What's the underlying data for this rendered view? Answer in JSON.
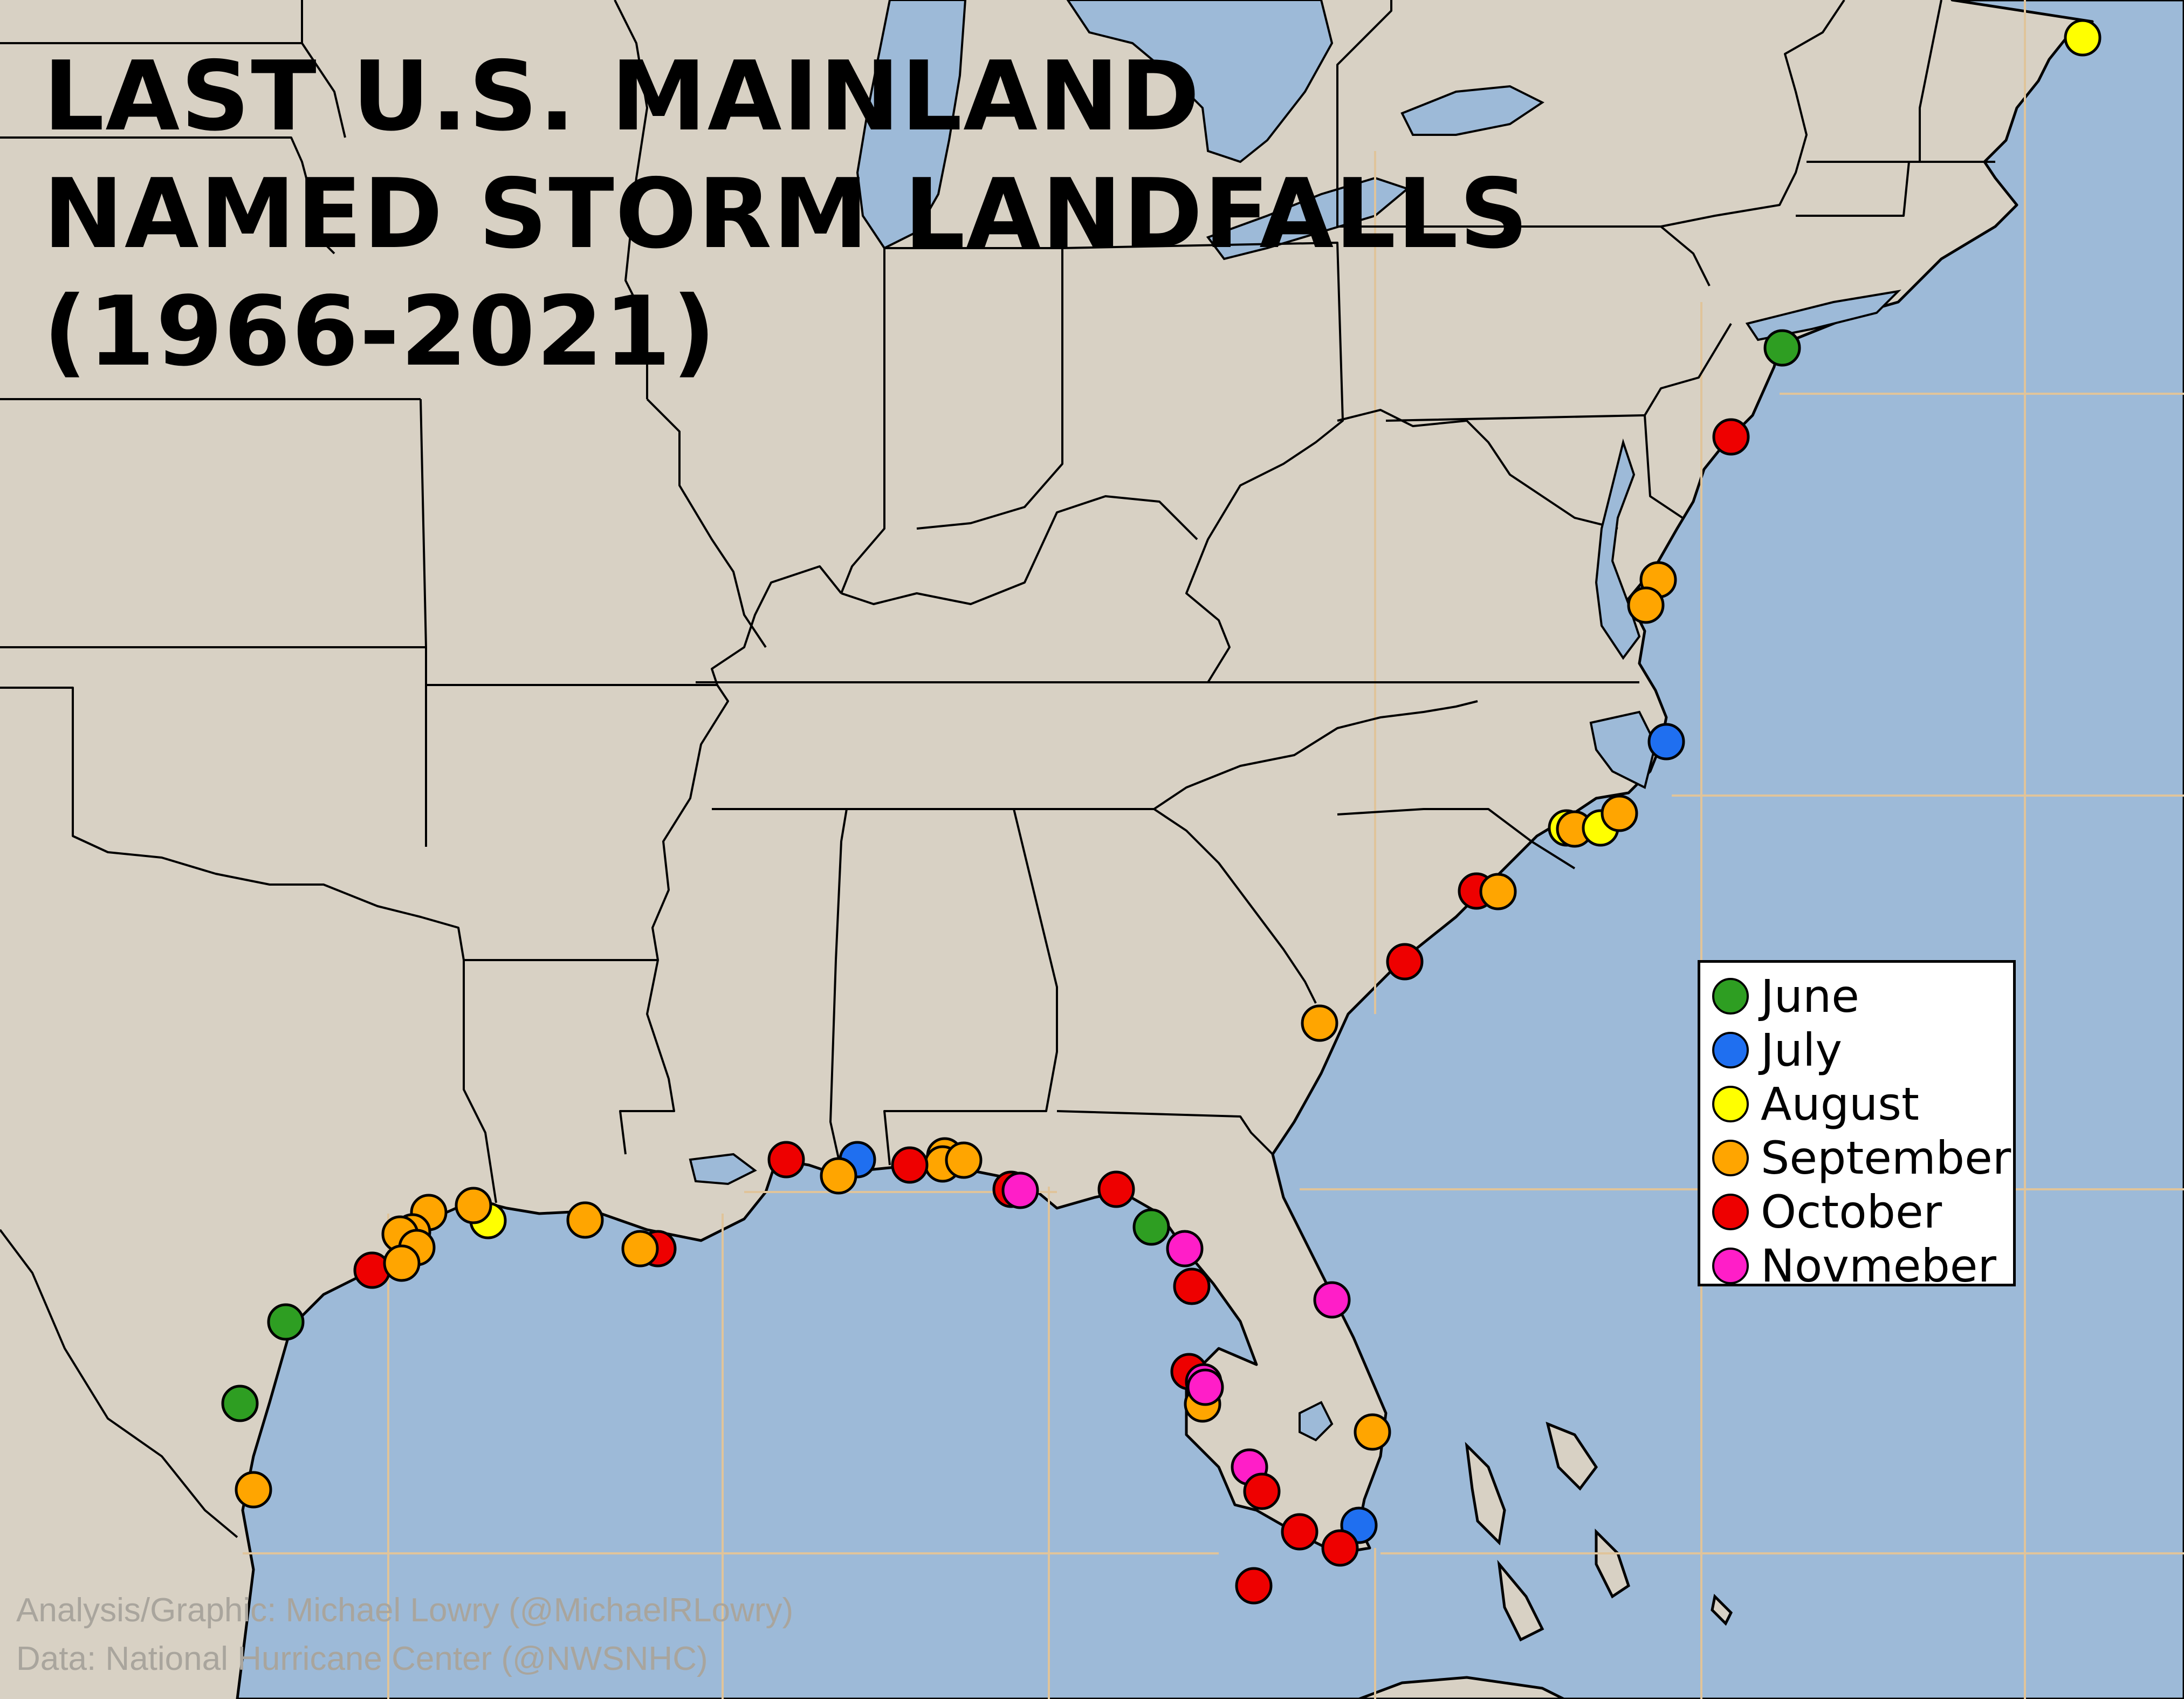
{
  "title": {
    "line1": "LAST U.S. MAINLAND",
    "line2": "NAMED STORM LANDFALLS",
    "line3": "(1966-2021)"
  },
  "colors": {
    "land": "#d8d1c4",
    "water": "#9dbad8",
    "grid": "#e0c49a",
    "border": "#000000"
  },
  "legend": [
    {
      "month": "June",
      "color": "#2e9e22"
    },
    {
      "month": "July",
      "color": "#1f6ff0"
    },
    {
      "month": "August",
      "color": "#ffff00"
    },
    {
      "month": "September",
      "color": "#ffa500"
    },
    {
      "month": "October",
      "color": "#ee0000"
    },
    {
      "month": "Novmeber",
      "color": "#ff1ec8"
    }
  ],
  "credits": {
    "analysis": "Analysis/Graphic: Michael Lowry (@MichaelRLowry)",
    "data": "Data: National Hurricane Center (@NWSNHC)"
  },
  "landfalls": [
    {
      "place": "Maine",
      "month": "August"
    },
    {
      "place": "Long Island NY",
      "month": "June"
    },
    {
      "place": "Southern New Jersey",
      "month": "October"
    },
    {
      "place": "Delmarva coast",
      "month": "September"
    },
    {
      "place": "Delmarva coast",
      "month": "September"
    },
    {
      "place": "Outer Banks NC",
      "month": "July"
    },
    {
      "place": "Southern NC coast",
      "month": "August"
    },
    {
      "place": "Southern NC coast",
      "month": "September"
    },
    {
      "place": "Southern NC coast",
      "month": "August"
    },
    {
      "place": "Southern NC coast",
      "month": "September"
    },
    {
      "place": "Northern SC coast",
      "month": "October"
    },
    {
      "place": "Northern SC coast",
      "month": "September"
    },
    {
      "place": "Central SC coast",
      "month": "October"
    },
    {
      "place": "Georgia coast",
      "month": "September"
    },
    {
      "place": "Florida Atlantic coast",
      "month": "Novmeber"
    },
    {
      "place": "Southeast Florida",
      "month": "September"
    },
    {
      "place": "Miami FL",
      "month": "July"
    },
    {
      "place": "Florida Keys",
      "month": "October"
    },
    {
      "place": "Upper Keys FL",
      "month": "October"
    },
    {
      "place": "Lower Keys FL",
      "month": "October"
    },
    {
      "place": "Southwest Florida",
      "month": "October"
    },
    {
      "place": "Southwest Florida",
      "month": "Novmeber"
    },
    {
      "place": "Southwest Florida",
      "month": "Novmeber"
    },
    {
      "place": "Southwest Florida",
      "month": "September"
    },
    {
      "place": "Southwest Florida",
      "month": "October"
    },
    {
      "place": "Southwest Florida",
      "month": "Novmeber"
    },
    {
      "place": "Tampa Bay FL",
      "month": "October"
    },
    {
      "place": "Big Bend FL",
      "month": "Novmeber"
    },
    {
      "place": "Big Bend FL",
      "month": "June"
    },
    {
      "place": "Apalachee Bay FL",
      "month": "October"
    },
    {
      "place": "Florida Panhandle",
      "month": "October"
    },
    {
      "place": "Florida Panhandle",
      "month": "Novmeber"
    },
    {
      "place": "Pensacola FL",
      "month": "September"
    },
    {
      "place": "Pensacola FL",
      "month": "September"
    },
    {
      "place": "Pensacola FL",
      "month": "September"
    },
    {
      "place": "Alabama coast",
      "month": "October"
    },
    {
      "place": "Mississippi coast",
      "month": "July"
    },
    {
      "place": "Mississippi coast",
      "month": "September"
    },
    {
      "place": "Mississippi coast",
      "month": "October"
    },
    {
      "place": "Louisiana coast",
      "month": "October"
    },
    {
      "place": "Louisiana coast",
      "month": "September"
    },
    {
      "place": "Louisiana coast",
      "month": "September"
    },
    {
      "place": "Cameron LA",
      "month": "August"
    },
    {
      "place": "Sabine Pass TX",
      "month": "September"
    },
    {
      "place": "Galveston TX",
      "month": "September"
    },
    {
      "place": "Galveston TX",
      "month": "September"
    },
    {
      "place": "Galveston TX",
      "month": "September"
    },
    {
      "place": "Galveston TX",
      "month": "October"
    },
    {
      "place": "Freeport TX",
      "month": "September"
    },
    {
      "place": "Matagorda TX",
      "month": "September"
    },
    {
      "place": "Port O'Connor TX",
      "month": "June"
    },
    {
      "place": "Corpus Christi TX",
      "month": "June"
    },
    {
      "place": "Brownsville TX",
      "month": "September"
    }
  ]
}
